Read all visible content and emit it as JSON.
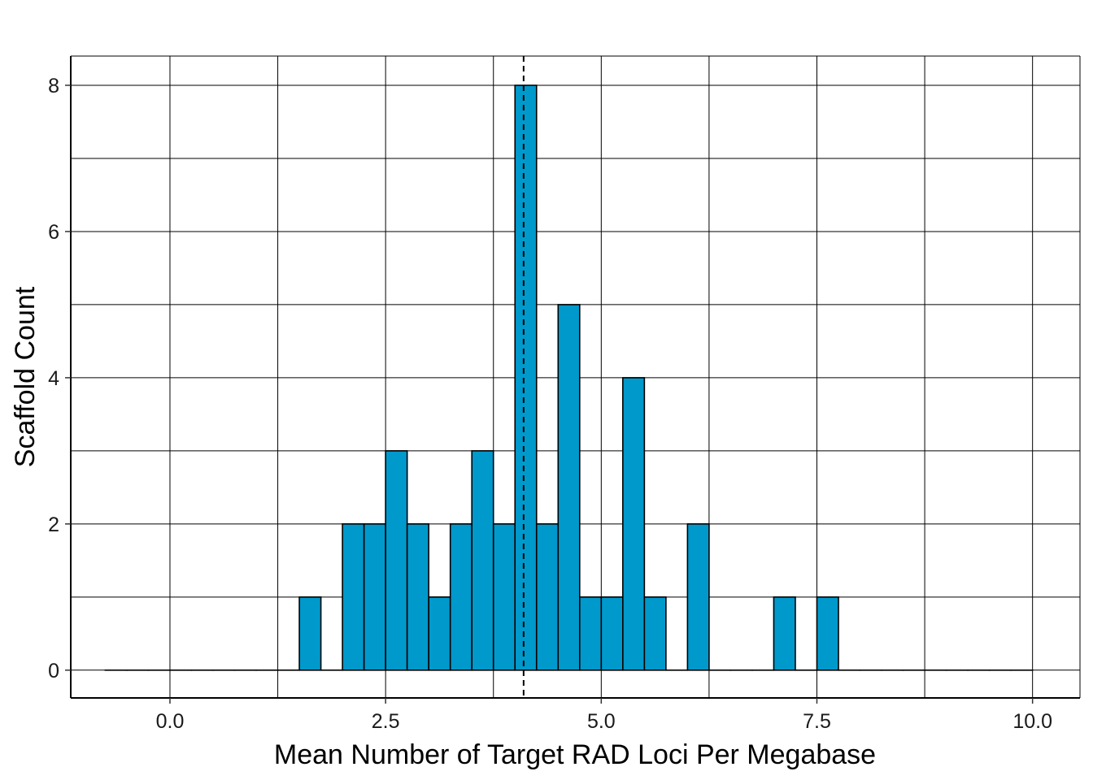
{
  "chart_data": {
    "type": "bar",
    "xlabel": "Mean Number of Target RAD Loci Per Megabase",
    "ylabel": "Scaffold Count",
    "xlim": [
      -1.15,
      10.55
    ],
    "ylim": [
      -0.38,
      8.4
    ],
    "x_ticks": [
      0.0,
      2.5,
      5.0,
      7.5,
      10.0
    ],
    "x_tick_labels": [
      "0.0",
      "2.5",
      "5.0",
      "7.5",
      "10.0"
    ],
    "x_minor_gridlines": [
      -1.25,
      1.25,
      3.75,
      6.25,
      8.75
    ],
    "y_ticks": [
      0,
      2,
      4,
      6,
      8
    ],
    "y_tick_labels": [
      "0",
      "2",
      "4",
      "6",
      "8"
    ],
    "y_minor_gridlines": [
      1,
      3,
      5,
      7
    ],
    "grid": true,
    "bin_width": 0.25,
    "bins_start": [
      -0.75,
      -0.5,
      -0.25,
      0.0,
      0.25,
      0.5,
      0.75,
      1.0,
      1.25,
      1.5,
      1.75,
      2.0,
      2.25,
      2.5,
      2.75,
      3.0,
      3.25,
      3.5,
      3.75,
      4.0,
      4.25,
      4.5,
      4.75,
      5.0,
      5.25,
      5.5,
      5.75,
      6.0,
      6.25,
      6.5,
      6.75,
      7.0,
      7.25,
      7.5,
      7.75,
      8.0,
      8.25,
      8.5,
      8.75,
      9.0,
      9.25,
      9.5,
      9.75
    ],
    "counts": [
      0,
      0,
      0,
      0,
      0,
      0,
      0,
      0,
      0,
      1,
      0,
      2,
      2,
      3,
      2,
      1,
      2,
      3,
      2,
      8,
      2,
      5,
      1,
      1,
      4,
      1,
      0,
      2,
      0,
      0,
      0,
      1,
      0,
      1,
      0,
      0,
      0,
      0,
      0,
      0,
      0,
      0,
      0
    ],
    "mean_line_x": 4.1,
    "bar_color": "#0099CC",
    "bar_edge_color": "#000000"
  }
}
